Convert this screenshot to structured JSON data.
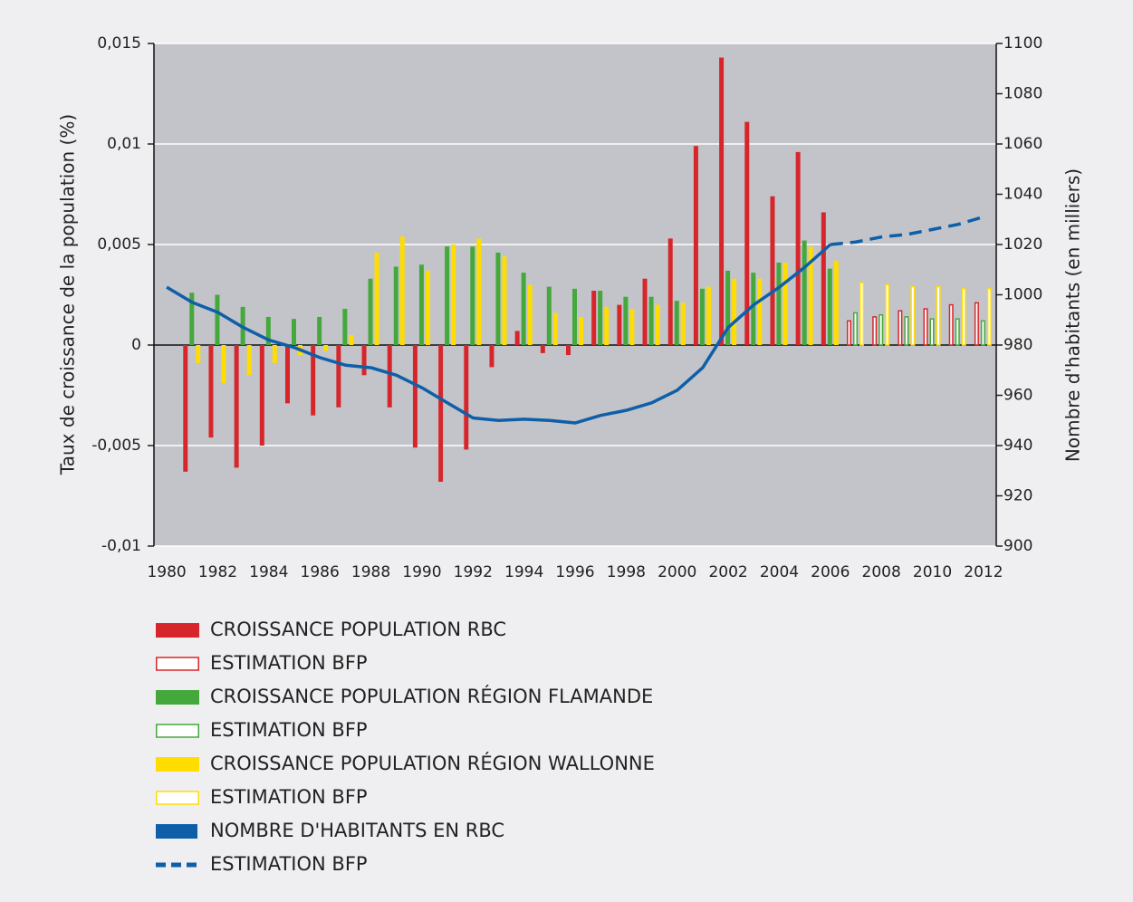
{
  "chart_data": {
    "type": "bar",
    "categories": [
      "1980",
      null,
      "1982",
      null,
      "1984",
      null,
      "1986",
      null,
      "1988",
      null,
      "1990",
      null,
      "1992",
      null,
      "1994",
      null,
      "1996",
      null,
      "1998",
      null,
      "2000",
      null,
      "2002",
      null,
      "2004",
      null,
      "2006",
      null,
      "2008",
      null,
      "2010",
      null,
      "2012"
    ],
    "y_label": "Taux de croissance de la population (%)",
    "y2_label": "Nombre d'habitants (en milliers)",
    "ylim": [
      -0.01,
      0.015
    ],
    "yticks": [
      {
        "value": -0.01,
        "label": "-0,01"
      },
      {
        "value": -0.005,
        "label": "-0,005"
      },
      0,
      {
        "value": 0.005,
        "label": "0,005"
      },
      {
        "value": 0.01,
        "label": "0,01"
      },
      {
        "value": 0.015,
        "label": "0,015"
      }
    ],
    "y2lim": [
      900,
      1100
    ],
    "y2ticks": [
      900,
      920,
      940,
      960,
      980,
      1000,
      1020,
      1040,
      1060,
      1080,
      1100
    ],
    "grid": true,
    "series": [
      {
        "name": "CROISSANCE POPULATION RBC",
        "color": "#d7262b",
        "values": [
          null,
          -0.0063,
          -0.0046,
          -0.0061,
          -0.005,
          -0.0029,
          -0.0035,
          -0.0031,
          -0.0015,
          -0.0031,
          -0.0051,
          -0.0068,
          -0.0052,
          -0.0011,
          0.0007,
          -0.0004,
          -0.0005,
          0.0027,
          0.002,
          0.0033,
          0.0053,
          0.0099,
          0.0143,
          0.0111,
          0.0074,
          0.0096,
          0.0066,
          null,
          null,
          null,
          null,
          null,
          null
        ]
      },
      {
        "name": "ESTIMATION BFP",
        "color": "#d7262b",
        "outline": true,
        "values": [
          null,
          null,
          null,
          null,
          null,
          null,
          null,
          null,
          null,
          null,
          null,
          null,
          null,
          null,
          null,
          null,
          null,
          null,
          null,
          null,
          null,
          null,
          null,
          null,
          null,
          null,
          null,
          0.0012,
          0.0014,
          0.0017,
          0.0018,
          0.002,
          0.0021
        ]
      },
      {
        "name": "CROISSANCE POPULATION RÉGION FLAMANDE",
        "color": "#45a83c",
        "values": [
          null,
          0.0026,
          0.0025,
          0.0019,
          0.0014,
          0.0013,
          0.0014,
          0.0018,
          0.0033,
          0.0039,
          0.004,
          0.0049,
          0.0049,
          0.0046,
          0.0036,
          0.0029,
          0.0028,
          0.0027,
          0.0024,
          0.0024,
          0.0022,
          0.0028,
          0.0037,
          0.0036,
          0.0041,
          0.0052,
          0.0038,
          null,
          null,
          null,
          null,
          null,
          null
        ]
      },
      {
        "name": "ESTIMATION BFP",
        "color": "#45a83c",
        "outline": true,
        "values": [
          null,
          null,
          null,
          null,
          null,
          null,
          null,
          null,
          null,
          null,
          null,
          null,
          null,
          null,
          null,
          null,
          null,
          null,
          null,
          null,
          null,
          null,
          null,
          null,
          null,
          null,
          null,
          0.0016,
          0.0015,
          0.0014,
          0.0013,
          0.0013,
          0.0012
        ]
      },
      {
        "name": "CROISSANCE POPULATION RÉGION WALLONNE",
        "color": "#ffdd00",
        "values": [
          null,
          -0.0009,
          -0.0019,
          -0.0015,
          -0.0009,
          -0.0005,
          -0.0003,
          0.0005,
          0.0046,
          0.0054,
          0.0037,
          0.005,
          0.0053,
          0.0044,
          0.003,
          0.0016,
          0.0014,
          0.0019,
          0.0018,
          0.002,
          0.0021,
          0.0029,
          0.0033,
          0.0033,
          0.0041,
          0.0049,
          0.0042,
          null,
          null,
          null,
          null,
          null,
          null
        ]
      },
      {
        "name": "ESTIMATION BFP",
        "color": "#ffdd00",
        "outline": true,
        "values": [
          null,
          null,
          null,
          null,
          null,
          null,
          null,
          null,
          null,
          null,
          null,
          null,
          null,
          null,
          null,
          null,
          null,
          null,
          null,
          null,
          null,
          null,
          null,
          null,
          null,
          null,
          null,
          0.0031,
          0.003,
          0.0029,
          0.0029,
          0.0028,
          0.0028
        ]
      },
      {
        "name": "NOMBRE D'HABITANTS EN RBC",
        "color": "#0f5fa8",
        "type": "line",
        "axis": "y2",
        "values": [
          1003,
          997,
          993,
          987,
          982,
          979,
          975,
          972,
          971,
          968,
          963,
          957,
          951,
          950,
          950.5,
          950,
          949,
          952,
          954,
          957,
          962,
          971,
          987,
          996,
          1003,
          1011,
          1020,
          null,
          null,
          null,
          null,
          null,
          null
        ]
      },
      {
        "name": "ESTIMATION BFP",
        "color": "#0f5fa8",
        "type": "line",
        "axis": "y2",
        "dashed": true,
        "values": [
          null,
          null,
          null,
          null,
          null,
          null,
          null,
          null,
          null,
          null,
          null,
          null,
          null,
          null,
          null,
          null,
          null,
          null,
          null,
          null,
          null,
          null,
          null,
          null,
          null,
          null,
          1020,
          1021,
          1023,
          1024,
          1026,
          1028,
          1031
        ]
      }
    ]
  }
}
